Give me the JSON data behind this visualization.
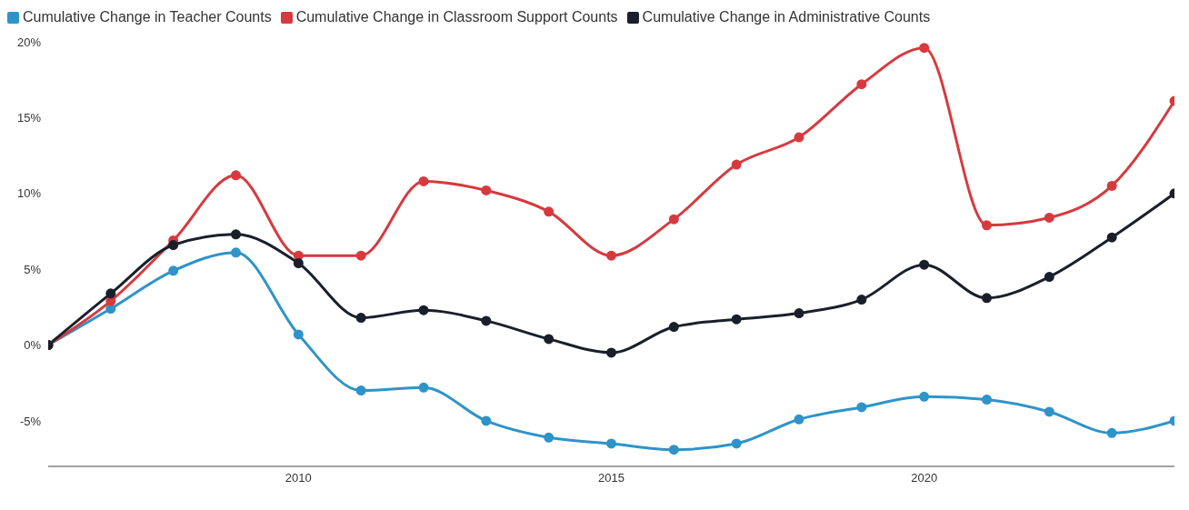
{
  "chart_data": {
    "type": "line",
    "x": [
      2006,
      2007,
      2008,
      2009,
      2010,
      2011,
      2012,
      2013,
      2014,
      2015,
      2016,
      2017,
      2018,
      2019,
      2020,
      2021,
      2022,
      2023,
      2024
    ],
    "series": [
      {
        "name": "Cumulative Change in Teacher Counts",
        "color": "#2e94c8",
        "values": [
          0,
          2.4,
          4.9,
          6.1,
          0.7,
          -3.0,
          -2.8,
          -5.0,
          -6.1,
          -6.5,
          -6.9,
          -6.5,
          -4.9,
          -4.1,
          -3.4,
          -3.6,
          -4.4,
          -5.8,
          -5.0
        ]
      },
      {
        "name": "Cumulative Change in Classroom Support Counts",
        "color": "#d63a3f",
        "values": [
          0,
          2.9,
          6.9,
          11.2,
          5.9,
          5.9,
          10.8,
          10.2,
          8.8,
          5.9,
          8.3,
          11.9,
          13.7,
          17.2,
          19.6,
          7.9,
          8.4,
          10.5,
          16.1
        ]
      },
      {
        "name": "Cumulative Change in Administrative Counts",
        "color": "#1a1f2b",
        "values": [
          0,
          3.4,
          6.6,
          7.3,
          5.4,
          1.8,
          2.3,
          1.6,
          0.4,
          -0.5,
          1.2,
          1.7,
          2.1,
          3.0,
          5.3,
          3.1,
          4.5,
          7.1,
          10.0
        ]
      }
    ],
    "xlim": [
      2006,
      2024
    ],
    "xticks": [
      2010,
      2015,
      2020
    ],
    "ylim": [
      -8,
      20
    ],
    "yticks": [
      {
        "value": -5,
        "label": "-5%"
      },
      {
        "value": 0,
        "label": "0%"
      },
      {
        "value": 5,
        "label": "5%"
      },
      {
        "value": 10,
        "label": "10%"
      },
      {
        "value": 15,
        "label": "15%"
      },
      {
        "value": 20,
        "label": "20%"
      }
    ],
    "grid": false,
    "legend": "top left",
    "marker": "circle",
    "line_style": "solid"
  }
}
